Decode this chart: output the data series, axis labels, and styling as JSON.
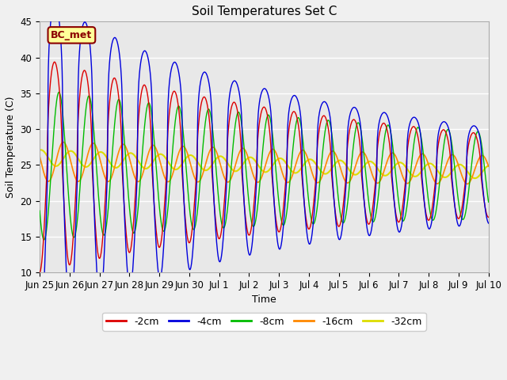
{
  "title": "Soil Temperatures Set C",
  "xlabel": "Time",
  "ylabel": "Soil Temperature (C)",
  "ylim": [
    10,
    45
  ],
  "colors": {
    "-2cm": "#dd0000",
    "-4cm": "#0000dd",
    "-8cm": "#00bb00",
    "-16cm": "#ff8800",
    "-32cm": "#dddd00"
  },
  "legend_labels": [
    "-2cm",
    "-4cm",
    "-8cm",
    "-16cm",
    "-32cm"
  ],
  "xtick_labels": [
    "Jun 25",
    "Jun 26",
    "Jun 27",
    "Jun 28",
    "Jun 29",
    "Jun 30",
    "Jul 1",
    "Jul 2",
    "Jul 3",
    "Jul 4",
    "Jul 5",
    "Jul 6",
    "Jul 7",
    "Jul 8",
    "Jul 9",
    "Jul 10"
  ],
  "label_box": "BC_met",
  "label_box_bg": "#ffff99",
  "label_box_border": "#8b0000",
  "fig_bg": "#f0f0f0",
  "plot_bg": "#e8e8e8"
}
